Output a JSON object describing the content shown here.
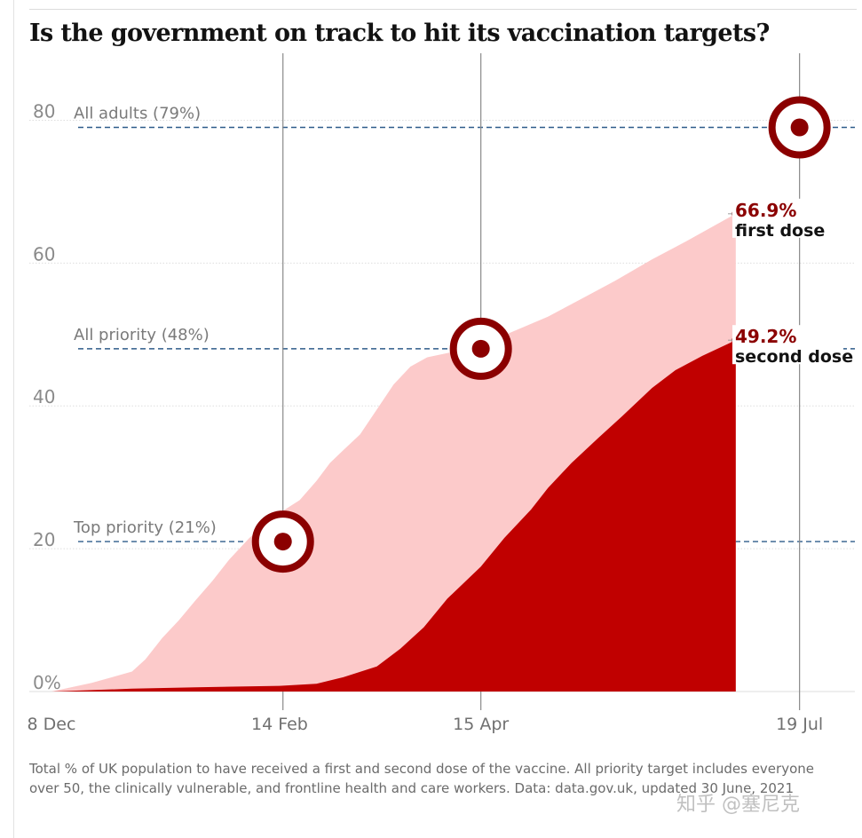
{
  "chart_data": {
    "type": "area",
    "title": "Is the government on track to hit its vaccination targets?",
    "y_ticks": [
      "0%",
      "20",
      "40",
      "60",
      "80"
    ],
    "y_tick_values": [
      0,
      20,
      40,
      60,
      80
    ],
    "ylim": [
      0,
      85
    ],
    "x_ticks": [
      {
        "label": "8 Dec",
        "date": "2020-12-08"
      },
      {
        "label": "14 Feb",
        "date": "2021-02-14"
      },
      {
        "label": "15 Apr",
        "date": "2021-04-15"
      },
      {
        "label": "19 Jul",
        "date": "2021-07-19"
      }
    ],
    "xlim": [
      "2020-12-08",
      "2021-08-18"
    ],
    "grid": true,
    "targets": [
      {
        "label": "Top priority (21%)",
        "value": 21,
        "date": "2021-02-15"
      },
      {
        "label": "All priority (48%)",
        "value": 48,
        "date": "2021-04-15"
      },
      {
        "label": "All adults (79%)",
        "value": 79,
        "date": "2021-07-19"
      }
    ],
    "series": [
      {
        "name": "first dose",
        "end_label": "66.9%",
        "color": "#fccaca",
        "x": [
          "2020-12-08",
          "2020-12-20",
          "2021-01-01",
          "2021-01-05",
          "2021-01-10",
          "2021-01-15",
          "2021-01-20",
          "2021-01-25",
          "2021-01-30",
          "2021-02-05",
          "2021-02-10",
          "2021-02-14",
          "2021-02-20",
          "2021-02-25",
          "2021-03-01",
          "2021-03-05",
          "2021-03-10",
          "2021-03-15",
          "2021-03-20",
          "2021-03-25",
          "2021-03-30",
          "2021-04-05",
          "2021-04-10",
          "2021-04-15",
          "2021-04-25",
          "2021-05-05",
          "2021-05-15",
          "2021-05-25",
          "2021-06-05",
          "2021-06-15",
          "2021-06-30"
        ],
        "values": [
          0,
          1.2,
          2.8,
          4.5,
          7.5,
          10,
          12.8,
          15.5,
          18.5,
          21.5,
          23.5,
          25,
          26.8,
          29.5,
          32,
          33.8,
          36,
          39.5,
          43,
          45.5,
          46.8,
          47.4,
          47.9,
          48.5,
          50.5,
          52.5,
          55,
          57.5,
          60.5,
          63,
          66.9
        ]
      },
      {
        "name": "second dose",
        "end_label": "49.2%",
        "color": "#c00000",
        "x": [
          "2020-12-08",
          "2021-01-01",
          "2021-01-20",
          "2021-02-14",
          "2021-02-25",
          "2021-03-05",
          "2021-03-15",
          "2021-03-22",
          "2021-03-29",
          "2021-04-05",
          "2021-04-15",
          "2021-04-22",
          "2021-04-30",
          "2021-05-05",
          "2021-05-12",
          "2021-05-20",
          "2021-05-27",
          "2021-06-05",
          "2021-06-12",
          "2021-06-20",
          "2021-06-30"
        ],
        "values": [
          0,
          0.4,
          0.6,
          0.8,
          1.1,
          2,
          3.5,
          6,
          9,
          13,
          17.5,
          21.5,
          25.5,
          28.5,
          32,
          35.5,
          38.5,
          42.5,
          45,
          47,
          49.2
        ]
      }
    ]
  },
  "caption": "Total % of UK population to have received a first and second dose of the vaccine. All priority target includes everyone over 50, the clinically vulnerable, and frontline health and care workers. Data: data.gov.uk, updated 30 June, 2021",
  "watermark": "知乎 @塞尼克",
  "colors": {
    "target_ring": "#8b0000",
    "target_line": "#2e5c8a",
    "label_accent": "#8b0000"
  }
}
